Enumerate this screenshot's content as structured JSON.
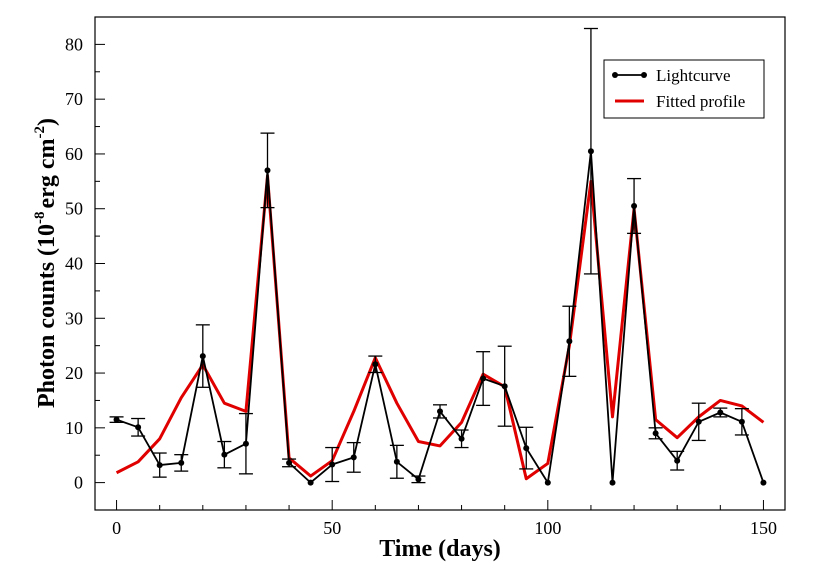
{
  "chart_data": {
    "type": "line",
    "xlabel": "Time (days)",
    "ylabel": {
      "main": "Photon counts (10",
      "sup1": "-8",
      "mid": "erg cm",
      "sup2": "-2",
      "end": ")"
    },
    "xlim": [
      -5,
      155
    ],
    "ylim": [
      -5,
      85
    ],
    "xticks": [
      0,
      50,
      100,
      150
    ],
    "yticks": [
      0,
      10,
      20,
      30,
      40,
      50,
      60,
      70,
      80
    ],
    "legend": {
      "position": "top-right",
      "entries": [
        "Lightcurve",
        "Fitted profile"
      ]
    },
    "colors": {
      "lightcurve": "#000000",
      "fit": "#e00000"
    },
    "series": [
      {
        "name": "Lightcurve",
        "x": [
          0,
          5,
          10,
          15,
          20,
          25,
          30,
          35,
          40,
          45,
          50,
          55,
          60,
          65,
          70,
          75,
          80,
          85,
          90,
          95,
          100,
          105,
          110,
          115,
          120,
          125,
          130,
          135,
          140,
          145,
          150
        ],
        "y": [
          11.5,
          10.1,
          3.2,
          3.6,
          23.1,
          5.1,
          7.1,
          57.0,
          3.6,
          0,
          3.3,
          4.6,
          21.6,
          3.8,
          0.6,
          13.0,
          8.0,
          19.0,
          17.6,
          6.3,
          0,
          25.8,
          60.5,
          0,
          50.5,
          9.0,
          4.0,
          11.1,
          12.8,
          11.1,
          0
        ],
        "err": [
          0.5,
          1.6,
          2.2,
          1.5,
          5.7,
          2.4,
          5.5,
          6.8,
          0.7,
          0,
          3.1,
          2.7,
          1.5,
          3.0,
          0.6,
          1.2,
          1.6,
          4.9,
          7.3,
          3.8,
          0,
          6.4,
          22.4,
          0,
          5.0,
          1.0,
          1.7,
          3.4,
          0.8,
          2.4,
          0
        ]
      },
      {
        "name": "Fitted profile",
        "x": [
          0,
          5,
          10,
          15,
          20,
          25,
          30,
          35,
          40,
          45,
          50,
          55,
          60,
          65,
          70,
          75,
          80,
          85,
          90,
          95,
          100,
          105,
          110,
          115,
          120,
          125,
          130,
          135,
          140,
          145,
          150
        ],
        "y": [
          1.8,
          3.8,
          8.0,
          15.5,
          21.5,
          14.5,
          13.0,
          56.0,
          4.5,
          1.2,
          4.0,
          13.0,
          22.8,
          14.5,
          7.5,
          6.7,
          11.0,
          19.8,
          17.5,
          0.7,
          3.5,
          25.0,
          55.0,
          12.0,
          50.0,
          11.5,
          8.2,
          12.0,
          15.0,
          14.0,
          11.0
        ]
      }
    ]
  }
}
